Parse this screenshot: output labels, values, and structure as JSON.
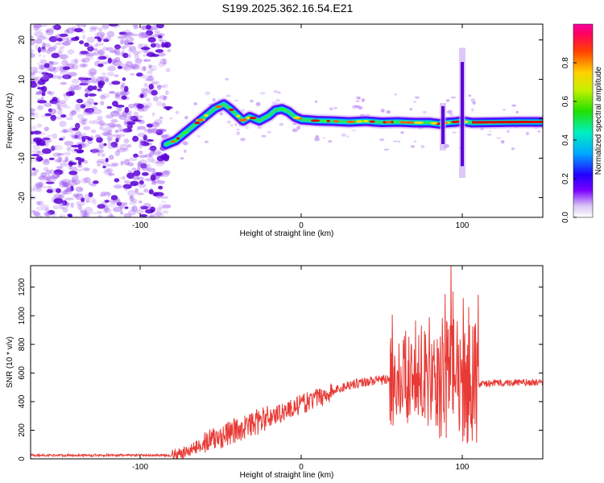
{
  "title": "S199.2025.362.16.54.E21",
  "colors": {
    "noise": "#a05cf0",
    "signal_dark": "#5a00d6",
    "snr_line": "#e83a35",
    "frame": "#000000"
  },
  "chart_data": [
    {
      "type": "heatmap",
      "title": "S199.2025.362.16.54.E21",
      "xlabel": "Height of straight line (km)",
      "ylabel": "Frequency (Hz)",
      "xlim": [
        -168,
        150
      ],
      "ylim": [
        -25,
        24
      ],
      "xticks": [
        -100,
        0,
        100
      ],
      "yticks": [
        20,
        10,
        0,
        -10,
        -20
      ],
      "colorbar": {
        "label": "Normalized spectral amplitude",
        "range": [
          0,
          1
        ],
        "ticks": [
          "0.0",
          "0.2",
          "0.4",
          "0.6",
          "0.8"
        ],
        "colormap": "rainbow"
      },
      "noise_region_x": [
        -168,
        -82
      ],
      "ridge": {
        "x": [
          -84,
          -78,
          -72,
          -66,
          -60,
          -54,
          -48,
          -44,
          -40,
          -36,
          -32,
          -26,
          -20,
          -16,
          -12,
          -8,
          -4,
          0,
          10,
          20,
          30,
          40,
          50,
          60,
          70,
          80,
          86,
          90,
          96,
          100,
          106,
          120,
          135,
          150
        ],
        "freq": [
          -6.5,
          -5.5,
          -3.5,
          -1.5,
          0.5,
          2.5,
          3.7,
          2.5,
          1.0,
          -0.5,
          0.5,
          -0.5,
          0.8,
          2.2,
          2.5,
          1.8,
          0.5,
          -0.2,
          -0.5,
          -0.6,
          -0.8,
          -0.6,
          -0.9,
          -0.8,
          -1.0,
          -1.0,
          -1.3,
          -1.0,
          -0.8,
          -0.6,
          -1.0,
          -0.9,
          -0.8,
          -0.8
        ]
      },
      "spikes": [
        {
          "x": 88,
          "range": [
            -8,
            4
          ]
        },
        {
          "x": 100,
          "range": [
            -15,
            18
          ]
        }
      ]
    },
    {
      "type": "line",
      "xlabel": "Height of straight line (km)",
      "ylabel": "SNR (10 * v/v)",
      "xlim": [
        -168,
        150
      ],
      "ylim": [
        0,
        1350
      ],
      "xticks": [
        -100,
        0,
        100
      ],
      "yticks": [
        0,
        200,
        400,
        600,
        800,
        1000,
        1200
      ],
      "series": [
        {
          "name": "SNR",
          "baseline_profile": {
            "x": [
              -168,
              -80,
              -75,
              -60,
              -40,
              -20,
              0,
              20,
              30,
              40,
              50,
              60,
              70,
              80,
              90,
              100,
              105,
              110,
              120,
              150
            ],
            "snr": [
              25,
              25,
              30,
              110,
              200,
              290,
              380,
              470,
              520,
              540,
              550,
              560,
              575,
              560,
              550,
              560,
              500,
              520,
              530,
              535
            ]
          },
          "peak": {
            "x": 93,
            "snr": 1350
          }
        }
      ]
    }
  ]
}
